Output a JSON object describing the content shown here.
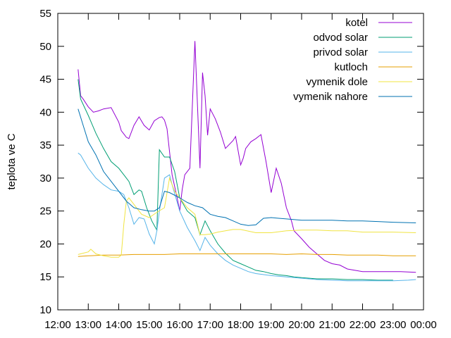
{
  "chart_data": {
    "type": "line",
    "title": "",
    "xlabel": "",
    "ylabel": "teplota ve C",
    "ylim": [
      10,
      55
    ],
    "xlim": [
      "12:00",
      "00:00"
    ],
    "grid": false,
    "legend_position": "top-right",
    "x_ticks": [
      "12:00",
      "13:00",
      "14:00",
      "15:00",
      "16:00",
      "17:00",
      "18:00",
      "19:00",
      "20:00",
      "21:00",
      "22:00",
      "23:00",
      "00:00"
    ],
    "y_ticks": [
      10,
      15,
      20,
      25,
      30,
      35,
      40,
      45,
      50,
      55
    ],
    "series": [
      {
        "name": "kotel",
        "color": "#9400d3",
        "x": [
          "12:40",
          "12:45",
          "12:50",
          "13:00",
          "13:10",
          "13:20",
          "13:30",
          "13:45",
          "14:00",
          "14:05",
          "14:10",
          "14:15",
          "14:20",
          "14:30",
          "14:40",
          "14:50",
          "15:00",
          "15:10",
          "15:20",
          "15:25",
          "15:30",
          "15:35",
          "15:45",
          "15:55",
          "16:00",
          "16:05",
          "16:10",
          "16:20",
          "16:30",
          "16:40",
          "16:45",
          "16:50",
          "16:55",
          "17:00",
          "17:10",
          "17:20",
          "17:30",
          "17:45",
          "17:50",
          "18:00",
          "18:05",
          "18:10",
          "18:20",
          "18:30",
          "18:40",
          "18:50",
          "19:00",
          "19:10",
          "19:20",
          "19:30",
          "19:40",
          "19:45",
          "20:00",
          "20:15",
          "20:30",
          "20:45",
          "21:00",
          "21:15",
          "21:30",
          "21:45",
          "22:00",
          "22:30",
          "23:00",
          "23:15",
          "23:45"
        ],
        "y": [
          46.5,
          42.5,
          42,
          40.8,
          40,
          40.2,
          40.5,
          40.7,
          38.5,
          37.2,
          36.7,
          36.2,
          36,
          38,
          39.3,
          38,
          37.3,
          38.7,
          39.2,
          39.3,
          38.8,
          37.5,
          30.5,
          27,
          25,
          28.3,
          30.5,
          31.5,
          50.8,
          31.5,
          46,
          42.5,
          36.5,
          40.5,
          39,
          37,
          34.5,
          35.7,
          36.3,
          32,
          33,
          34.5,
          35.5,
          36,
          36.6,
          32.5,
          27.8,
          31.5,
          29.2,
          25.5,
          23.5,
          22,
          20.8,
          19.5,
          18.5,
          17.5,
          17,
          16.8,
          16.2,
          16,
          15.8,
          15.8,
          15.8,
          15.8,
          15.7
        ]
      },
      {
        "name": "odvod solar",
        "color": "#009e73",
        "x": [
          "12:40",
          "12:45",
          "13:00",
          "13:15",
          "13:30",
          "13:45",
          "14:00",
          "14:10",
          "14:20",
          "14:30",
          "14:40",
          "14:45",
          "14:55",
          "15:05",
          "15:15",
          "15:20",
          "15:30",
          "15:40",
          "15:50",
          "16:00",
          "16:15",
          "16:30",
          "16:40",
          "16:50",
          "17:00",
          "17:15",
          "17:30",
          "17:45",
          "18:00",
          "18:15",
          "18:30",
          "18:45",
          "19:00",
          "19:15",
          "19:30",
          "19:45",
          "20:00",
          "20:15",
          "20:30",
          "21:00",
          "21:30",
          "22:00",
          "22:30",
          "23:00"
        ],
        "y": [
          45,
          42,
          39.5,
          36.8,
          34.5,
          32.5,
          31.5,
          30.5,
          29.5,
          27.5,
          28.2,
          28,
          25.5,
          23.5,
          22.1,
          34.3,
          33.2,
          33.2,
          31,
          27,
          25,
          24,
          21.4,
          23.5,
          22,
          20,
          18.6,
          17.5,
          17,
          16.5,
          16,
          15.8,
          15.5,
          15.3,
          15.2,
          15,
          14.9,
          14.8,
          14.7,
          14.7,
          14.6,
          14.6,
          14.5,
          14.5
        ]
      },
      {
        "name": "privod solar",
        "color": "#56b4e9",
        "x": [
          "12:40",
          "12:45",
          "13:00",
          "13:15",
          "13:30",
          "13:45",
          "14:00",
          "14:10",
          "14:20",
          "14:30",
          "14:40",
          "14:50",
          "15:00",
          "15:10",
          "15:15",
          "15:20",
          "15:30",
          "15:40",
          "15:45",
          "16:00",
          "16:15",
          "16:30",
          "16:40",
          "16:50",
          "17:00",
          "17:15",
          "17:30",
          "17:45",
          "18:00",
          "18:15",
          "18:30",
          "19:00",
          "19:30",
          "20:00",
          "20:30",
          "21:00",
          "21:30",
          "22:00",
          "22:30",
          "23:00",
          "23:30",
          "23:45"
        ],
        "y": [
          33.8,
          33.5,
          31.5,
          30,
          29,
          28.2,
          28,
          27.5,
          25.5,
          23,
          24,
          23.8,
          21.5,
          20,
          22,
          25,
          30,
          30.5,
          29,
          25,
          22.5,
          20.5,
          19,
          21,
          19.8,
          18.5,
          17.5,
          16.8,
          16.3,
          15.8,
          15.5,
          15.2,
          15,
          14.8,
          14.6,
          14.5,
          14.4,
          14.4,
          14.4,
          14.4,
          14.5,
          14.6
        ]
      },
      {
        "name": "kutloch",
        "color": "#e69f00",
        "x": [
          "12:40",
          "13:00",
          "13:30",
          "14:00",
          "14:30",
          "15:00",
          "15:30",
          "16:00",
          "16:30",
          "17:00",
          "17:30",
          "18:00",
          "18:30",
          "19:00",
          "19:30",
          "20:00",
          "20:30",
          "21:00",
          "21:30",
          "22:00",
          "22:30",
          "23:00",
          "23:30",
          "23:45"
        ],
        "y": [
          18.1,
          18.2,
          18.3,
          18.3,
          18.4,
          18.4,
          18.4,
          18.5,
          18.5,
          18.5,
          18.5,
          18.5,
          18.5,
          18.5,
          18.4,
          18.5,
          18.4,
          18.4,
          18.3,
          18.3,
          18.3,
          18.2,
          18.2,
          18.2
        ]
      },
      {
        "name": "vymenik dole",
        "color": "#f0e442",
        "x": [
          "12:40",
          "12:45",
          "13:00",
          "13:05",
          "13:15",
          "13:30",
          "13:45",
          "14:00",
          "14:05",
          "14:10",
          "14:15",
          "14:20",
          "14:30",
          "14:45",
          "15:00",
          "15:15",
          "15:30",
          "15:40",
          "15:50",
          "16:00",
          "16:15",
          "16:30",
          "16:40",
          "16:50",
          "17:00",
          "17:15",
          "17:30",
          "17:45",
          "18:00",
          "18:30",
          "19:00",
          "19:30",
          "20:00",
          "20:30",
          "21:00",
          "21:30",
          "22:00",
          "22:30",
          "23:00",
          "23:45"
        ],
        "y": [
          18.4,
          18.5,
          18.8,
          19.2,
          18.5,
          18.2,
          18,
          18,
          18.3,
          23,
          26.5,
          27,
          26,
          24.5,
          24,
          24.8,
          25.5,
          30,
          28,
          27,
          25.5,
          24.5,
          21.4,
          21.4,
          21.5,
          21.8,
          22,
          22.2,
          22.2,
          21.7,
          21.7,
          22,
          22.1,
          22.1,
          22,
          22,
          21.8,
          21.8,
          21.8,
          21.7
        ]
      },
      {
        "name": "vymenik nahore",
        "color": "#0072b2",
        "x": [
          "12:40",
          "12:50",
          "13:00",
          "13:15",
          "13:30",
          "13:45",
          "14:00",
          "14:15",
          "14:30",
          "14:45",
          "15:00",
          "15:10",
          "15:20",
          "15:30",
          "15:40",
          "16:00",
          "16:15",
          "16:30",
          "16:45",
          "17:00",
          "17:15",
          "17:30",
          "17:45",
          "18:00",
          "18:15",
          "18:30",
          "18:45",
          "19:00",
          "19:15",
          "19:30",
          "20:00",
          "20:30",
          "21:00",
          "21:30",
          "22:00",
          "22:30",
          "23:00",
          "23:45"
        ],
        "y": [
          40.5,
          38,
          35.5,
          33.5,
          31,
          29.5,
          28,
          26.5,
          25.5,
          25.2,
          25,
          25,
          25.5,
          28,
          27.8,
          27,
          26.3,
          25.8,
          25.5,
          24.5,
          24.2,
          24,
          23.5,
          23,
          22.8,
          22.9,
          23.9,
          24,
          23.9,
          23.8,
          23.6,
          23.6,
          23.6,
          23.5,
          23.5,
          23.4,
          23.3,
          23.2
        ]
      }
    ]
  }
}
